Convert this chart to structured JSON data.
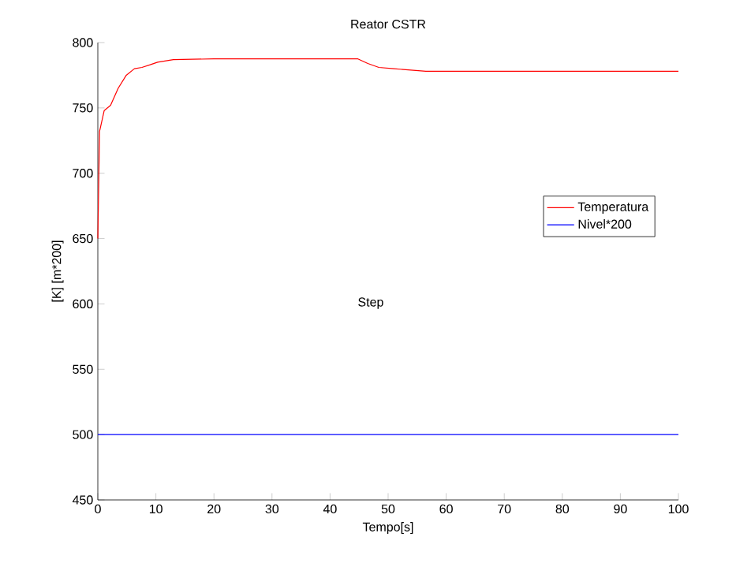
{
  "chart_data": {
    "type": "line",
    "title": "Reator CSTR",
    "xlabel": "Tempo[s]",
    "ylabel": "[K] [m*200]",
    "annotations": [
      "Step"
    ],
    "xlim": [
      0,
      100
    ],
    "ylim": [
      450,
      800
    ],
    "xticks": [
      0,
      10,
      20,
      30,
      40,
      50,
      60,
      70,
      80,
      90,
      100
    ],
    "yticks": [
      450,
      500,
      550,
      600,
      650,
      700,
      750,
      800
    ],
    "legend": "right",
    "grid": false,
    "marker": "none",
    "line_style": "solid",
    "series": [
      {
        "name": "Temperatura",
        "color": "#ff0000",
        "x": [
          0,
          0.3,
          1.1,
          2.2,
          3.5,
          4.9,
          6.3,
          7.6,
          9,
          10.3,
          13,
          20,
          30,
          44.8,
          46.5,
          48.4,
          51,
          56.5,
          70,
          85,
          100
        ],
        "values": [
          650,
          732,
          748,
          752,
          765,
          775,
          780,
          781,
          783,
          785,
          787,
          787.5,
          787.5,
          787.5,
          784,
          781,
          780,
          778,
          778,
          778,
          778
        ]
      },
      {
        "name": "Nivel*200",
        "color": "#0000ff",
        "x": [
          0,
          100
        ],
        "values": [
          500,
          500
        ]
      }
    ]
  }
}
